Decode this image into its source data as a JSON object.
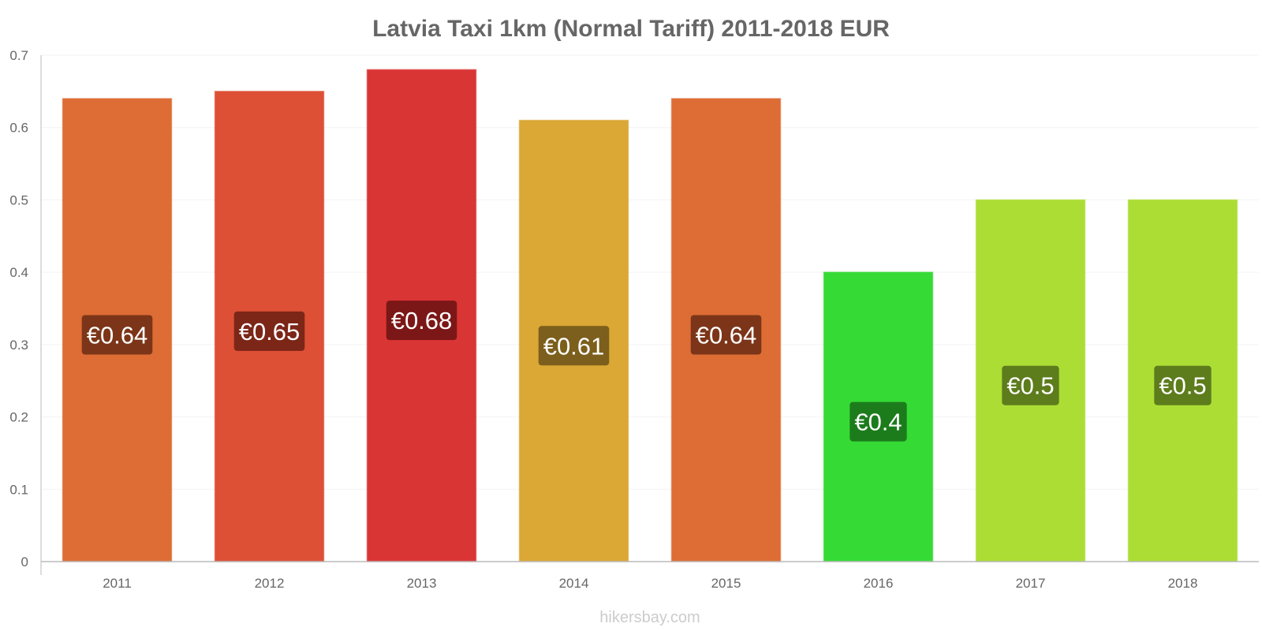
{
  "chart_data": {
    "type": "bar",
    "title": "Latvia Taxi 1km (Normal Tariff) 2011-2018 EUR",
    "xlabel": "",
    "ylabel": "",
    "categories": [
      "2011",
      "2012",
      "2013",
      "2014",
      "2015",
      "2016",
      "2017",
      "2018"
    ],
    "values": [
      0.64,
      0.65,
      0.68,
      0.61,
      0.64,
      0.4,
      0.5,
      0.5
    ],
    "value_labels": [
      "€0.64",
      "€0.65",
      "€0.68",
      "€0.61",
      "€0.64",
      "€0.4",
      "€0.5",
      "€0.5"
    ],
    "ylim": [
      0,
      0.7
    ],
    "yticks": [
      "0",
      "0.1",
      "0.2",
      "0.3",
      "0.4",
      "0.5",
      "0.6",
      "0.7"
    ],
    "grid": true,
    "legend": "none",
    "bar_colors": [
      "#dd6d35",
      "#dd5035",
      "#da3535",
      "#dba735",
      "#dd6d35",
      "#35da35",
      "#acdd35",
      "#acdd35"
    ],
    "label_bg_colors": [
      "#6b2c13",
      "#6b1e13",
      "#6b1212",
      "#6b5218",
      "#6b2c13",
      "#176b17",
      "#4f6b18",
      "#4f6b18"
    ]
  },
  "watermark": "hikersbay.com"
}
